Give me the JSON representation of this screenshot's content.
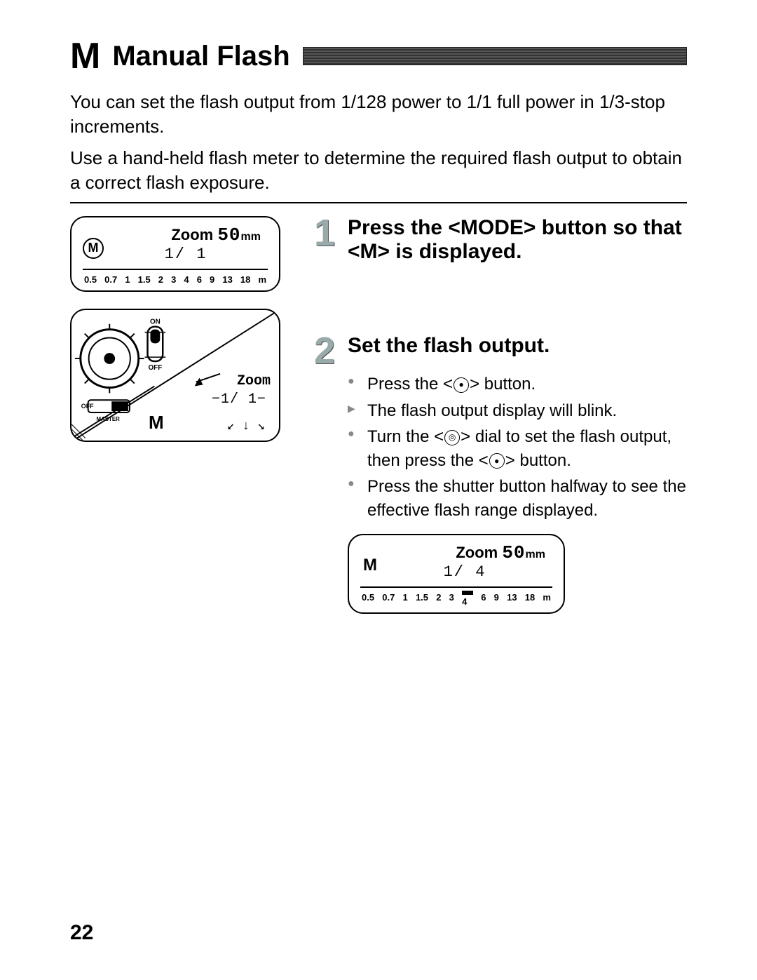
{
  "heading": {
    "prefix": "M",
    "title": "Manual Flash"
  },
  "intro1": "You can set the flash output from 1/128 power to 1/1 full power in 1/3-stop increments.",
  "intro2": "Use a hand-held flash meter to determine the required flash output to obtain a correct flash exposure.",
  "lcd1": {
    "zoom_label": "Zoom",
    "zoom_value": "50",
    "zoom_unit": "mm",
    "ratio": "1/ 1",
    "mode": "M",
    "scale": [
      "0.5",
      "0.7",
      "1",
      "1.5",
      "2",
      "3",
      "4",
      "6",
      "9",
      "13",
      "18",
      "m"
    ]
  },
  "dial": {
    "on": "ON",
    "off": "OFF",
    "off2": "OFF",
    "master": "MASTER",
    "zoom_label": "Zoom",
    "ratio": "−1/ 1−",
    "mode": "M",
    "arrows": "↙ ↓ ↘"
  },
  "step1": {
    "num": "1",
    "title": "Press the <MODE> button so that <M> is displayed."
  },
  "step2": {
    "num": "2",
    "title": "Set the flash output.",
    "b1a": "Press the <",
    "b1b": "> button.",
    "b2": "The flash output display will blink.",
    "b3a": "Turn the <",
    "b3b": "> dial to set the flash output, then press the <",
    "b3c": "> button.",
    "b4": "Press the shutter button halfway to see the effective flash range displayed."
  },
  "lcd2": {
    "zoom_label": "Zoom",
    "zoom_value": "50",
    "zoom_unit": "mm",
    "ratio": "1/ 4",
    "mode": "M",
    "scale": [
      "0.5",
      "0.7",
      "1",
      "1.5",
      "2",
      "3",
      "4",
      "6",
      "9",
      "13",
      "18",
      "m"
    ],
    "mark_index": 6
  },
  "page": "22"
}
